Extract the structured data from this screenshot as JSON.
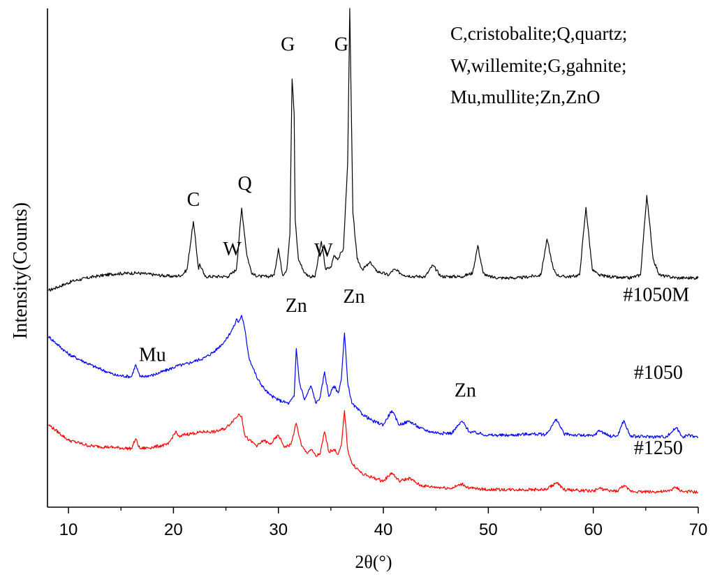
{
  "chart_data": {
    "type": "line",
    "title": "",
    "xlabel": "2θ(°)",
    "ylabel": "Intensity(Counts)",
    "xlim": [
      8,
      70
    ],
    "xticks": [
      10,
      20,
      30,
      40,
      50,
      60,
      70
    ],
    "legend_box": [
      "C,cristobalite;Q,quartz;",
      "W,willemite;G,gahnite;",
      "Mu,mullite;Zn,ZnO"
    ],
    "series": [
      {
        "name": "#1050M",
        "color": "#000000",
        "x": [
          8.1,
          10.5,
          12.5,
          14.5,
          16.5,
          18.5,
          20.0,
          20.8,
          21.3,
          21.9,
          22.4,
          22.5,
          23.0,
          24.0,
          25.2,
          25.6,
          26.0,
          26.5,
          27.0,
          27.5,
          28.3,
          29.0,
          29.6,
          30.0,
          30.4,
          30.8,
          31.1,
          31.3,
          31.5,
          31.6,
          31.9,
          32.5,
          33.0,
          33.5,
          34.1,
          34.5,
          35.0,
          35.3,
          35.7,
          36.2,
          36.6,
          36.8,
          37.1,
          37.5,
          38.0,
          38.8,
          39.3,
          40.5,
          41.0,
          42.0,
          43.0,
          44.0,
          44.7,
          45.5,
          46.5,
          47.5,
          48.5,
          49.0,
          49.5,
          50.0,
          51.0,
          52.0,
          53.0,
          54.0,
          55.0,
          55.6,
          56.2,
          56.6,
          57.0,
          58.0,
          58.7,
          59.3,
          59.9,
          60.5,
          61.5,
          62.5,
          63.5,
          64.5,
          65.1,
          65.7,
          66.3,
          67.0,
          68.0,
          69.0,
          70.0
        ],
        "y": [
          300,
          314,
          320,
          324,
          325,
          322,
          320,
          322,
          330,
          398,
          330,
          338,
          320,
          320,
          320,
          325,
          330,
          417,
          350,
          323,
          320,
          320,
          322,
          360,
          322,
          330,
          380,
          600,
          550,
          400,
          345,
          325,
          320,
          320,
          370,
          330,
          333,
          350,
          345,
          360,
          480,
          700,
          410,
          345,
          330,
          340,
          328,
          322,
          330,
          322,
          320,
          320,
          336,
          320,
          320,
          320,
          325,
          364,
          325,
          320,
          318,
          318,
          318,
          320,
          322,
          373,
          330,
          322,
          320,
          320,
          322,
          418,
          330,
          322,
          320,
          318,
          318,
          322,
          435,
          345,
          322,
          320,
          318,
          318,
          318
        ]
      },
      {
        "name": "#1050",
        "color": "#0000ff",
        "x": [
          8.1,
          10.0,
          12.5,
          14.5,
          16.0,
          16.4,
          16.8,
          18.0,
          19.5,
          20.5,
          21.0,
          22.0,
          23.0,
          24.0,
          25.0,
          25.8,
          26.0,
          26.2,
          26.5,
          26.8,
          27.2,
          28.0,
          28.7,
          29.2,
          30.0,
          31.0,
          31.5,
          31.7,
          32.0,
          32.5,
          33.1,
          33.6,
          34.0,
          34.4,
          34.8,
          35.3,
          35.7,
          36.0,
          36.3,
          36.6,
          37.0,
          38.0,
          39.0,
          40.0,
          40.8,
          41.5,
          42.5,
          43.5,
          44.5,
          45.5,
          46.5,
          47.5,
          48.2,
          49.0,
          50.0,
          52.0,
          54.0,
          55.5,
          56.5,
          57.2,
          58.5,
          60.0,
          60.6,
          61.5,
          62.3,
          62.9,
          63.5,
          64.5,
          66.0,
          67.0,
          67.9,
          68.5,
          69.2,
          70.0
        ],
        "y": [
          235,
          210,
          192,
          180,
          178,
          195,
          178,
          180,
          188,
          194,
          195,
          200,
          205,
          215,
          230,
          250,
          260,
          255,
          265,
          245,
          205,
          175,
          160,
          152,
          145,
          140,
          150,
          218,
          170,
          145,
          165,
          140,
          150,
          185,
          150,
          165,
          155,
          175,
          240,
          170,
          140,
          125,
          115,
          110,
          130,
          110,
          115,
          105,
          100,
          98,
          98,
          115,
          100,
          98,
          95,
          95,
          97,
          96,
          118,
          97,
          95,
          94,
          102,
          94,
          94,
          116,
          94,
          93,
          93,
          93,
          106,
          93,
          95,
          92
        ]
      },
      {
        "name": "#1250",
        "color": "#ff0000",
        "x": [
          8.1,
          10.0,
          12.0,
          14.0,
          16.0,
          16.4,
          16.8,
          18.0,
          19.5,
          20.2,
          20.6,
          21.0,
          22.0,
          23.0,
          24.0,
          25.0,
          25.8,
          26.0,
          26.2,
          26.5,
          26.8,
          27.2,
          28.0,
          28.6,
          29.2,
          30.0,
          30.6,
          31.2,
          31.7,
          32.2,
          32.7,
          33.1,
          33.6,
          34.0,
          34.4,
          34.8,
          35.3,
          35.7,
          36.0,
          36.3,
          36.6,
          37.0,
          38.0,
          39.0,
          40.0,
          40.8,
          41.5,
          42.5,
          43.5,
          44.5,
          45.5,
          46.5,
          47.5,
          48.2,
          49.0,
          50.0,
          52.0,
          54.0,
          55.5,
          56.5,
          57.2,
          58.5,
          60.0,
          60.6,
          61.5,
          62.3,
          62.9,
          63.5,
          64.5,
          66.0,
          67.0,
          67.9,
          68.5,
          69.2,
          70.0
        ],
        "y": [
          110,
          88,
          80,
          78,
          76,
          90,
          76,
          78,
          82,
          100,
          92,
          96,
          98,
          100,
          100,
          105,
          118,
          120,
          125,
          122,
          95,
          88,
          80,
          88,
          82,
          95,
          78,
          82,
          112,
          80,
          70,
          75,
          65,
          70,
          100,
          72,
          75,
          68,
          80,
          130,
          75,
          55,
          40,
          35,
          30,
          42,
          30,
          34,
          24,
          22,
          21,
          20,
          26,
          20,
          19,
          18,
          18,
          18,
          18,
          28,
          18,
          17,
          16,
          20,
          16,
          16,
          24,
          16,
          15,
          15,
          15,
          21,
          15,
          15,
          14
        ]
      }
    ],
    "peak_labels": [
      {
        "text": "C",
        "x": 21.9,
        "y": 420
      },
      {
        "text": "W",
        "x": 25.6,
        "y": 350
      },
      {
        "text": "Q",
        "x": 26.8,
        "y": 443
      },
      {
        "text": "G",
        "x": 30.9,
        "y": 640
      },
      {
        "text": "W",
        "x": 34.3,
        "y": 348
      },
      {
        "text": "G",
        "x": 36.0,
        "y": 640
      },
      {
        "text": "Mu",
        "x": 18.0,
        "y": 200
      },
      {
        "text": "Zn",
        "x": 31.7,
        "y": 270
      },
      {
        "text": "Zn",
        "x": 37.2,
        "y": 283
      },
      {
        "text": "Zn",
        "x": 47.8,
        "y": 150
      },
      {
        "text": "#1050M",
        "x": 66.0,
        "y": 285
      },
      {
        "text": "#1050",
        "x": 66.2,
        "y": 175
      },
      {
        "text": "#1250",
        "x": 66.2,
        "y": 68
      }
    ]
  }
}
